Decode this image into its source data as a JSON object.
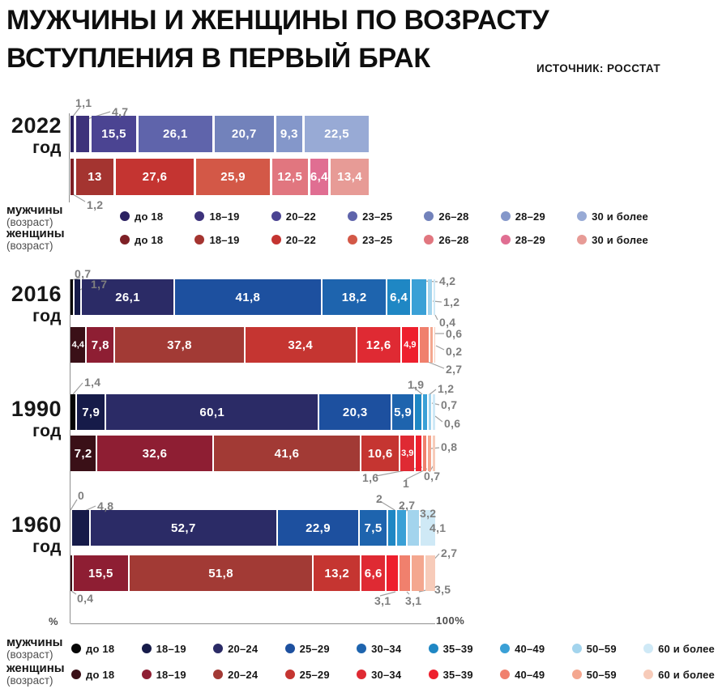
{
  "title_line1": "МУЖЧИНЫ И ЖЕНЩИНЫ ПО ВОЗРАСТУ",
  "title_line2": "ВСТУПЛЕНИЯ В ПЕРВЫЙ БРАК",
  "source": "ИСТОЧНИК: РОССТАТ",
  "axis": {
    "percent_label": "%",
    "end_label": "100%"
  },
  "chart_data": {
    "type": "bar",
    "subtype": "stacked-horizontal",
    "unit": "percent",
    "xlim": [
      0,
      100
    ],
    "palette": {
      "men_2022": [
        "#2c2261",
        "#3d327b",
        "#4b4492",
        "#5f64ab",
        "#7282bb",
        "#8497ca",
        "#98aad5"
      ],
      "women_2022": [
        "#7e2026",
        "#a43430",
        "#c43431",
        "#d35847",
        "#e1767f",
        "#e06e92",
        "#e79b96"
      ],
      "men_historic": [
        "#060606",
        "#161b49",
        "#2b2b66",
        "#1d509f",
        "#1e64ae",
        "#1f87c4",
        "#3aa0d6",
        "#a3d4ed",
        "#cfe9f6"
      ],
      "women_historic": [
        "#3a1017",
        "#8e1e33",
        "#a23a35",
        "#c53531",
        "#df2a33",
        "#ee1f2d",
        "#f0806d",
        "#f4a78f",
        "#f7cbb9"
      ]
    },
    "legend_2022": {
      "men_label": "мужчины",
      "men_sub": "(возраст)",
      "women_label": "женщины",
      "women_sub": "(возраст)",
      "categories": [
        "до 18",
        "18–19",
        "20–22",
        "23–25",
        "26–28",
        "28–29",
        "30 и более"
      ]
    },
    "legend_historic": {
      "men_label": "мужчины",
      "men_sub": "(возраст)",
      "women_label": "женщины",
      "women_sub": "(возраст)",
      "categories": [
        "до 18",
        "18–19",
        "20–24",
        "25–29",
        "30–34",
        "35–39",
        "40–49",
        "50–59",
        "60 и более"
      ]
    },
    "groups": [
      {
        "year": "2022",
        "year_suffix": "год",
        "legend": "legend_2022",
        "men": {
          "values": [
            1.1,
            4.7,
            15.5,
            26.1,
            20.7,
            9.3,
            22.5
          ],
          "labels": [
            "1,1",
            "4,7",
            "15,5",
            "26,1",
            "20,7",
            "9,3",
            "22,5"
          ]
        },
        "women": {
          "values": [
            1.2,
            13,
            27.6,
            25.9,
            12.5,
            6.4,
            13.4
          ],
          "labels": [
            "1,2",
            "13",
            "27,6",
            "25,9",
            "12,5",
            "6,4",
            "13,4"
          ]
        }
      },
      {
        "year": "2016",
        "year_suffix": "год",
        "legend": "legend_historic",
        "men": {
          "values": [
            0.7,
            1.7,
            26.1,
            41.8,
            18.2,
            6.4,
            4.2,
            1.2,
            0.4
          ],
          "labels": [
            "0,7",
            "1,7",
            "26,1",
            "41,8",
            "18,2",
            "6,4",
            "4,2",
            "1,2",
            "0,4"
          ]
        },
        "women": {
          "values": [
            4.4,
            7.8,
            37.8,
            32.4,
            12.6,
            4.9,
            2.7,
            0.6,
            0.2
          ],
          "labels": [
            "4,4",
            "7,8",
            "37,8",
            "32,4",
            "12,6",
            "4,9",
            "2,7",
            "0,6",
            "0,2"
          ]
        }
      },
      {
        "year": "1990",
        "year_suffix": "год",
        "legend": "legend_historic",
        "men": {
          "values": [
            1.4,
            7.9,
            60.1,
            20.3,
            5.9,
            1.9,
            1.2,
            0.7,
            0.6
          ],
          "labels": [
            "1,4",
            "7,9",
            "60,1",
            "20,3",
            "5,9",
            "1,9",
            "1,2",
            "0,7",
            "0,6"
          ]
        },
        "women": {
          "values": [
            7.2,
            32.6,
            41.6,
            10.6,
            3.9,
            1.6,
            1,
            0.8,
            0.7
          ],
          "labels": [
            "7,2",
            "32,6",
            "41,6",
            "10,6",
            "3,9",
            "1,6",
            "1",
            "0,8",
            "0,7"
          ]
        }
      },
      {
        "year": "1960",
        "year_suffix": "год",
        "legend": "legend_historic",
        "men": {
          "values": [
            0,
            4.8,
            52.7,
            22.9,
            7.5,
            2,
            2.7,
            3.2,
            4.1
          ],
          "labels": [
            "0",
            "4,8",
            "52,7",
            "22,9",
            "7,5",
            "2",
            "2,7",
            "3,2",
            "4,1"
          ]
        },
        "women": {
          "values": [
            0.4,
            15.5,
            51.8,
            13.2,
            6.6,
            3.1,
            3.1,
            3.5,
            2.7
          ],
          "labels": [
            "0,4",
            "15,5",
            "51,8",
            "13,2",
            "6,6",
            "3,1",
            "3,1",
            "3,5",
            "2,7"
          ]
        }
      }
    ]
  }
}
